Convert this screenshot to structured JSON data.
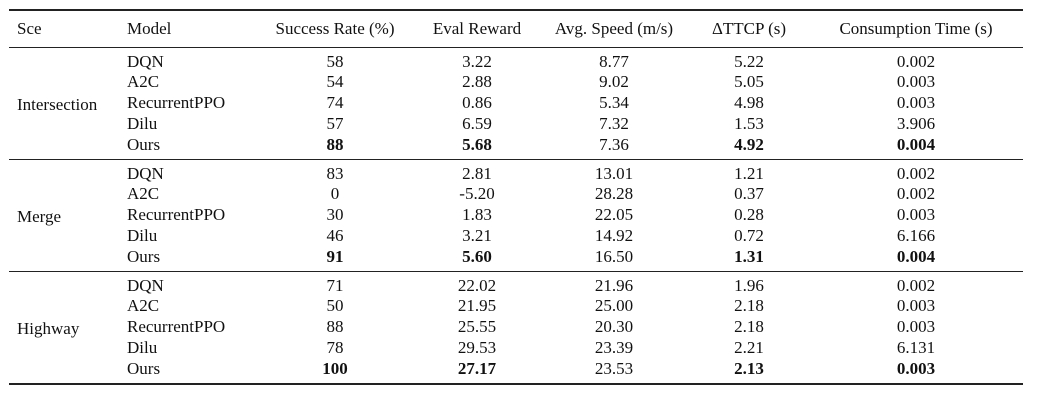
{
  "table": {
    "headers": {
      "scenario": "Sce",
      "model": "Model",
      "success_rate": "Success Rate (%)",
      "eval_reward": "Eval Reward",
      "avg_speed": "Avg. Speed (m/s)",
      "ttcp": "ΔTTCP (s)",
      "consumption_time": "Consumption Time (s)"
    },
    "groups": [
      {
        "scenario": "Intersection",
        "rows": [
          {
            "model": "DQN",
            "success_rate": "58",
            "eval_reward": "3.22",
            "avg_speed": "8.77",
            "ttcp": "5.22",
            "consumption_time": "0.002"
          },
          {
            "model": "A2C",
            "success_rate": "54",
            "eval_reward": "2.88",
            "avg_speed": "9.02",
            "ttcp": "5.05",
            "consumption_time": "0.003"
          },
          {
            "model": "RecurrentPPO",
            "success_rate": "74",
            "eval_reward": "0.86",
            "avg_speed": "5.34",
            "ttcp": "4.98",
            "consumption_time": "0.003"
          },
          {
            "model": "Dilu",
            "success_rate": "57",
            "eval_reward": "6.59",
            "avg_speed": "7.32",
            "ttcp": "1.53",
            "consumption_time": "3.906"
          },
          {
            "model": "Ours",
            "success_rate": "88",
            "eval_reward": "5.68",
            "avg_speed": "7.36",
            "ttcp": "4.92",
            "consumption_time": "0.004"
          }
        ]
      },
      {
        "scenario": "Merge",
        "rows": [
          {
            "model": "DQN",
            "success_rate": "83",
            "eval_reward": "2.81",
            "avg_speed": "13.01",
            "ttcp": "1.21",
            "consumption_time": "0.002"
          },
          {
            "model": "A2C",
            "success_rate": "0",
            "eval_reward": "-5.20",
            "avg_speed": "28.28",
            "ttcp": "0.37",
            "consumption_time": "0.002"
          },
          {
            "model": "RecurrentPPO",
            "success_rate": "30",
            "eval_reward": "1.83",
            "avg_speed": "22.05",
            "ttcp": "0.28",
            "consumption_time": "0.003"
          },
          {
            "model": "Dilu",
            "success_rate": "46",
            "eval_reward": "3.21",
            "avg_speed": "14.92",
            "ttcp": "0.72",
            "consumption_time": "6.166"
          },
          {
            "model": "Ours",
            "success_rate": "91",
            "eval_reward": "5.60",
            "avg_speed": "16.50",
            "ttcp": "1.31",
            "consumption_time": "0.004"
          }
        ]
      },
      {
        "scenario": "Highway",
        "rows": [
          {
            "model": "DQN",
            "success_rate": "71",
            "eval_reward": "22.02",
            "avg_speed": "21.96",
            "ttcp": "1.96",
            "consumption_time": "0.002"
          },
          {
            "model": "A2C",
            "success_rate": "50",
            "eval_reward": "21.95",
            "avg_speed": "25.00",
            "ttcp": "2.18",
            "consumption_time": "0.003"
          },
          {
            "model": "RecurrentPPO",
            "success_rate": "88",
            "eval_reward": "25.55",
            "avg_speed": "20.30",
            "ttcp": "2.18",
            "consumption_time": "0.003"
          },
          {
            "model": "Dilu",
            "success_rate": "78",
            "eval_reward": "29.53",
            "avg_speed": "23.39",
            "ttcp": "2.21",
            "consumption_time": "6.131"
          },
          {
            "model": "Ours",
            "success_rate": "100",
            "eval_reward": "27.17",
            "avg_speed": "23.53",
            "ttcp": "2.13",
            "consumption_time": "0.003"
          }
        ]
      }
    ]
  }
}
